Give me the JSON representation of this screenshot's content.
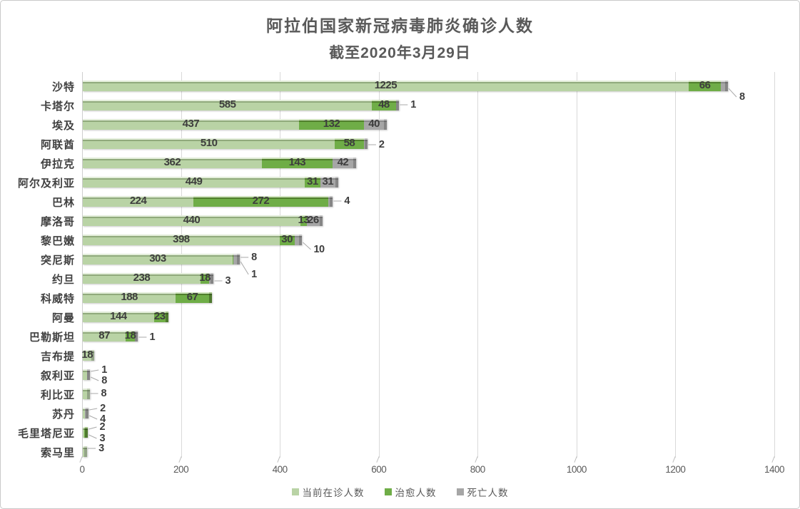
{
  "title": {
    "line1": "阿拉伯国家新冠病毒肺炎确诊人数",
    "line2": "截至2020年3月29日"
  },
  "axis": {
    "ticks": [
      0,
      200,
      400,
      600,
      800,
      1000,
      1200,
      1400
    ],
    "max": 1400
  },
  "legend": [
    {
      "key": "active",
      "label": "当前在诊人数",
      "color": "#b9d3a5"
    },
    {
      "key": "cured",
      "label": "治愈人数",
      "color": "#6fad47"
    },
    {
      "key": "death",
      "label": "死亡人数",
      "color": "#a6a6a6"
    }
  ],
  "chart_data": {
    "type": "bar",
    "orientation": "horizontal",
    "stacked": true,
    "title": "阿拉伯国家新冠病毒肺炎确诊人数",
    "subtitle": "截至2020年3月29日",
    "xlabel": "",
    "ylabel": "",
    "xlim": [
      0,
      1400
    ],
    "grid": true,
    "legend_position": "bottom",
    "series_names": [
      "当前在诊人数",
      "治愈人数",
      "死亡人数"
    ],
    "series_colors": {
      "active": "#b9d3a5",
      "cured": "#6fad47",
      "gray": "#a6a6a6"
    },
    "countries": [
      {
        "name": "沙特",
        "active": 1225,
        "cured": 66,
        "death": 8,
        "inside": [
          "active",
          "cured"
        ],
        "callouts": [
          {
            "series": "death",
            "dy": 16
          }
        ]
      },
      {
        "name": "卡塔尔",
        "active": 585,
        "cured": 48,
        "death": 1,
        "inside": [
          "active",
          "cured"
        ],
        "callouts": [
          {
            "series": "death",
            "dy": 0
          }
        ]
      },
      {
        "name": "埃及",
        "active": 437,
        "cured": 132,
        "death": 40,
        "inside": [
          "active",
          "cured",
          "death"
        ],
        "callouts": []
      },
      {
        "name": "阿联酋",
        "active": 510,
        "cured": 58,
        "death": 2,
        "inside": [
          "active",
          "cured"
        ],
        "callouts": [
          {
            "series": "death",
            "dy": 2
          }
        ]
      },
      {
        "name": "伊拉克",
        "active": 362,
        "cured": 143,
        "death": 42,
        "inside": [
          "active",
          "cured",
          "death"
        ],
        "callouts": []
      },
      {
        "name": "阿尔及利亚",
        "active": 449,
        "cured": 31,
        "death": 31,
        "inside": [
          "active",
          "cured",
          "death"
        ],
        "callouts": []
      },
      {
        "name": "巴林",
        "active": 224,
        "cured": 272,
        "death": 4,
        "inside": [
          "active",
          "cured"
        ],
        "callouts": [
          {
            "series": "death",
            "dy": 0
          }
        ]
      },
      {
        "name": "摩洛哥",
        "active": 440,
        "cured": 13,
        "death": 26,
        "inside": [
          "active",
          "cured",
          "death"
        ],
        "callouts": []
      },
      {
        "name": "黎巴嫩",
        "active": 398,
        "cured": 30,
        "death": 10,
        "inside": [
          "active",
          "cured"
        ],
        "callouts": [
          {
            "series": "death",
            "dy": 14
          }
        ]
      },
      {
        "name": "突尼斯",
        "active": 303,
        "cured": 1,
        "death": 8,
        "inside": [
          "active"
        ],
        "callouts": [
          {
            "series": "death",
            "dy": -2
          },
          {
            "series": "cured",
            "dy": 22
          }
        ]
      },
      {
        "name": "约旦",
        "active": 238,
        "cured": 18,
        "death": 3,
        "inside": [
          "active",
          "cured"
        ],
        "callouts": [
          {
            "series": "death",
            "dy": 4
          }
        ]
      },
      {
        "name": "科威特",
        "active": 188,
        "cured": 67,
        "death": 0,
        "inside": [
          "active",
          "cured"
        ],
        "callouts": []
      },
      {
        "name": "阿曼",
        "active": 144,
        "cured": 23,
        "death": 0,
        "inside": [
          "active",
          "cured"
        ],
        "callouts": []
      },
      {
        "name": "巴勒斯坦",
        "active": 87,
        "cured": 18,
        "death": 1,
        "inside": [
          "active",
          "cured"
        ],
        "callouts": [
          {
            "series": "death",
            "dy": 2
          }
        ]
      },
      {
        "name": "吉布提",
        "active": 18,
        "cured": 0,
        "death": 0,
        "inside": [
          "active"
        ],
        "callouts": []
      },
      {
        "name": "叙利亚",
        "active": 8,
        "cured": 0,
        "death": 1,
        "inside": [],
        "callouts": [
          {
            "series": "death",
            "dy": -6
          },
          {
            "series": "active",
            "dy": 9
          }
        ]
      },
      {
        "name": "利比亚",
        "active": 8,
        "cured": 0,
        "death": 0,
        "inside": [],
        "callouts": [
          {
            "series": "active",
            "dy": 0
          }
        ]
      },
      {
        "name": "苏丹",
        "active": 4,
        "cured": 0,
        "death": 2,
        "inside": [],
        "callouts": [
          {
            "series": "death",
            "dy": -6
          },
          {
            "series": "active",
            "dy": 9
          }
        ]
      },
      {
        "name": "毛里塔尼亚",
        "active": 3,
        "cured": 2,
        "death": 0,
        "inside": [],
        "callouts": [
          {
            "series": "cured",
            "dy": -7
          },
          {
            "series": "active",
            "dy": 9
          }
        ]
      },
      {
        "name": "索马里",
        "active": 3,
        "cured": 0,
        "death": 0,
        "inside": [],
        "callouts": [
          {
            "series": "active",
            "dy": -4
          }
        ]
      }
    ]
  }
}
